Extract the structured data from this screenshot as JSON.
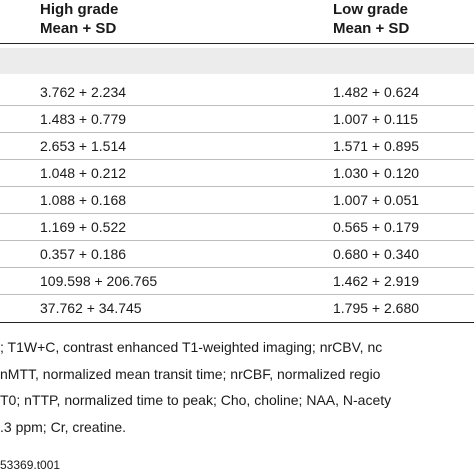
{
  "header": {
    "col1_line1": "High grade",
    "col1_line2": "Mean + SD",
    "col2_line1": "Low grade",
    "col2_line2": "Mean + SD"
  },
  "rows": [
    {
      "high": "3.762 + 2.234",
      "low": "1.482 + 0.624"
    },
    {
      "high": "1.483 + 0.779",
      "low": "1.007 + 0.115"
    },
    {
      "high": "2.653 + 1.514",
      "low": "1.571 + 0.895"
    },
    {
      "high": "1.048 + 0.212",
      "low": "1.030 + 0.120"
    },
    {
      "high": "1.088 + 0.168",
      "low": "1.007 + 0.051"
    },
    {
      "high": "1.169 + 0.522",
      "low": "0.565 + 0.179"
    },
    {
      "high": "0.357 + 0.186",
      "low": "0.680 + 0.340"
    },
    {
      "high": "109.598 + 206.765",
      "low": "1.462 + 2.919"
    },
    {
      "high": "37.762 + 34.745",
      "low": "1.795 + 2.680"
    }
  ],
  "footnotes": [
    "; T1W+C, contrast enhanced T1-weighted imaging; nrCBV, nc",
    " nMTT, normalized mean transit time; nrCBF, normalized regio",
    "T0; nTTP, normalized time to peak; Cho, choline; NAA, N-acety",
    ".3 ppm; Cr, creatine."
  ],
  "doi_fragment": "53369.t001"
}
